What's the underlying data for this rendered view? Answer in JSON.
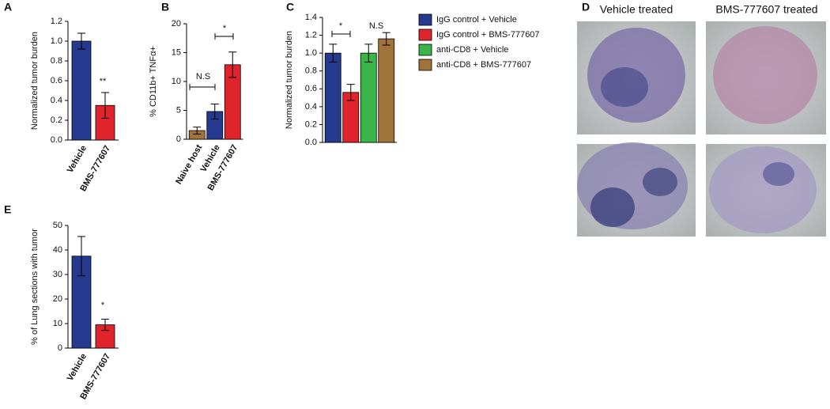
{
  "chart_data": [
    {
      "type": "bar",
      "panel_label": "A",
      "y_label": "Normalized tumor burden",
      "categories": [
        "Vehicle",
        "BMS-777607"
      ],
      "values": [
        1,
        0.35
      ],
      "errors": [
        0.08,
        0.13
      ],
      "colors": [
        "#253a8e",
        "#e0242b"
      ],
      "ylim": [
        0,
        1.2
      ],
      "yticks": [
        {
          "value": 0,
          "label": "0.0"
        },
        0.2,
        0.4,
        0.6,
        0.8,
        {
          "value": 1,
          "label": "1.0"
        },
        1.2
      ],
      "annotations": [
        "**"
      ]
    },
    {
      "type": "bar",
      "panel_label": "B",
      "y_label": "% CD11b+ TNFα+",
      "categories": [
        "Naive host",
        "Vehicle",
        "BMS-777607"
      ],
      "values": [
        1.5,
        4.8,
        12.9
      ],
      "errors": [
        0.6,
        1.3,
        2.2
      ],
      "colors": [
        "#a0733a",
        "#253a8e",
        "#e0242b"
      ],
      "ylim": [
        0,
        20
      ],
      "yticks": [
        0,
        5,
        10,
        15,
        20
      ],
      "annotations": [
        "N.S",
        "*"
      ]
    },
    {
      "type": "bar",
      "panel_label": "C",
      "y_label": "Normalized tumor burden",
      "series": [
        {
          "name": "IgG control + Vehicle",
          "color": "#253a8e",
          "values": [
            1
          ],
          "errors": [
            0.1
          ]
        },
        {
          "name": "IgG control + BMS-777607",
          "color": "#e0242b",
          "values": [
            0.56
          ],
          "errors": [
            0.09
          ]
        },
        {
          "name": "anti-CD8 + Vehicle",
          "color": "#3ab54a",
          "values": [
            1
          ],
          "errors": [
            0.1
          ]
        },
        {
          "name": "anti-CD8 + BMS-777607",
          "color": "#a0733a",
          "values": [
            1.16
          ],
          "errors": [
            0.07
          ]
        }
      ],
      "ylim": [
        0,
        1.4
      ],
      "yticks": [
        {
          "value": 0,
          "label": "0.0"
        },
        0.2,
        0.4,
        0.6,
        0.8,
        {
          "value": 1,
          "label": "1.0"
        },
        1.2,
        1.4
      ],
      "annotations": [
        "*",
        "N.S"
      ]
    },
    {
      "type": "bar",
      "panel_label": "E",
      "y_label": "% of Lung sections with tumor",
      "categories": [
        "Vehicle",
        "BMS-777607"
      ],
      "values": [
        37.5,
        9.5
      ],
      "errors": [
        8,
        2.3
      ],
      "colors": [
        "#253a8e",
        "#e0242b"
      ],
      "ylim": [
        0,
        50
      ],
      "yticks": [
        0,
        10,
        20,
        30,
        40,
        50
      ],
      "annotations": [
        "*"
      ]
    }
  ],
  "image_panel": {
    "panel_label": "D",
    "titles": [
      "Vehicle treated",
      "BMS-777607 treated"
    ]
  }
}
